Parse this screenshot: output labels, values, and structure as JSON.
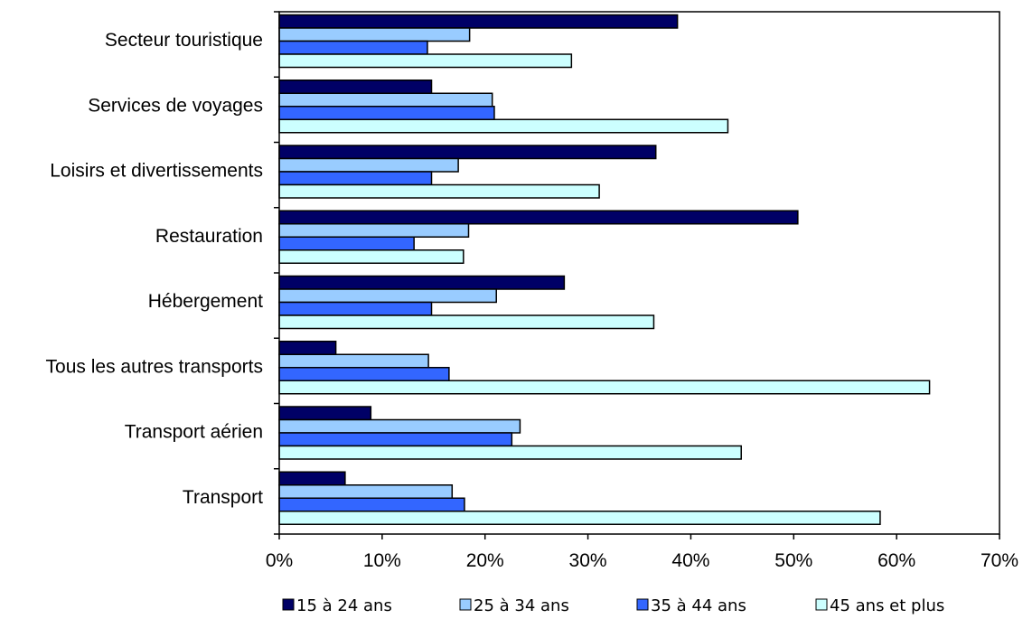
{
  "chart_data": {
    "type": "bar",
    "orientation": "horizontal",
    "categories": [
      "Secteur touristique",
      "Services de voyages",
      "Loisirs et divertissements",
      "Restauration",
      "Hébergement",
      "Tous les autres transports",
      "Transport aérien",
      "Transport"
    ],
    "series": [
      {
        "name": "15 à 24 ans",
        "color": "#000066",
        "values": [
          38.7,
          14.8,
          36.6,
          50.4,
          27.7,
          5.5,
          8.9,
          6.4
        ]
      },
      {
        "name": "25 à 34 ans",
        "color": "#99CCFF",
        "values": [
          18.5,
          20.7,
          17.4,
          18.4,
          21.1,
          14.5,
          23.4,
          16.8
        ]
      },
      {
        "name": "35 à 44 ans",
        "color": "#3366FF",
        "values": [
          14.4,
          20.9,
          14.8,
          13.1,
          14.8,
          16.5,
          22.6,
          18.0
        ]
      },
      {
        "name": "45 ans et plus",
        "color": "#CCFFFF",
        "values": [
          28.4,
          43.6,
          31.1,
          17.9,
          36.4,
          63.2,
          44.9,
          58.4
        ]
      }
    ],
    "xlim": [
      0,
      70
    ],
    "xticks": [
      0,
      10,
      20,
      30,
      40,
      50,
      60,
      70
    ],
    "tick_suffix": "%",
    "grid": false,
    "legend_position": "bottom",
    "title": "",
    "xlabel": "",
    "ylabel": ""
  }
}
